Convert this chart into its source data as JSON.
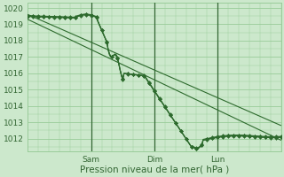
{
  "xlabel": "Pression niveau de la mer( hPa )",
  "ylim": [
    1011.2,
    1020.3
  ],
  "xlim": [
    0,
    96
  ],
  "yticks": [
    1012,
    1013,
    1014,
    1015,
    1016,
    1017,
    1018,
    1019,
    1020
  ],
  "day_ticks": [
    24,
    48,
    72
  ],
  "day_labels": [
    "Sam",
    "Dim",
    "Lun"
  ],
  "bg_color": "#cce8cc",
  "grid_color": "#99cc99",
  "line_color": "#2d6a2d",
  "marker_color": "#2d6a2d"
}
